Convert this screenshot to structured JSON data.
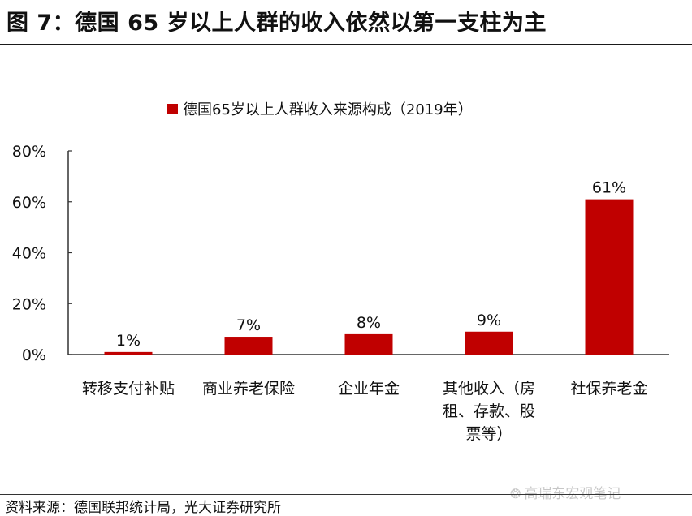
{
  "figure_title": "图 7：德国 65 岁以上人群的收入依然以第一支柱为主",
  "source_note": "资料来源：德国联邦统计局，光大证券研究所",
  "watermark": "高瑞东宏观笔记",
  "colors": {
    "bar": "#c00000",
    "axis": "#333333",
    "text": "#111111"
  },
  "chart_data": {
    "type": "bar",
    "title": "",
    "legend_position": "top-center",
    "series": [
      {
        "name": "德国65岁以上人群收入来源构成（2019年）",
        "values": [
          1,
          7,
          8,
          9,
          61
        ]
      }
    ],
    "categories": [
      [
        "转移支付补贴"
      ],
      [
        "商业养老保险"
      ],
      [
        "企业年金"
      ],
      [
        "其他收入（房",
        "租、存款、股",
        "票等）"
      ],
      [
        "社保养老金"
      ]
    ],
    "data_labels": [
      "1%",
      "7%",
      "8%",
      "9%",
      "61%"
    ],
    "yticks": [
      0,
      20,
      40,
      60,
      80
    ],
    "ytick_labels": [
      "0%",
      "20%",
      "40%",
      "60%",
      "80%"
    ],
    "ylim": [
      0,
      80
    ],
    "xlabel": "",
    "ylabel": "",
    "grid": false
  }
}
